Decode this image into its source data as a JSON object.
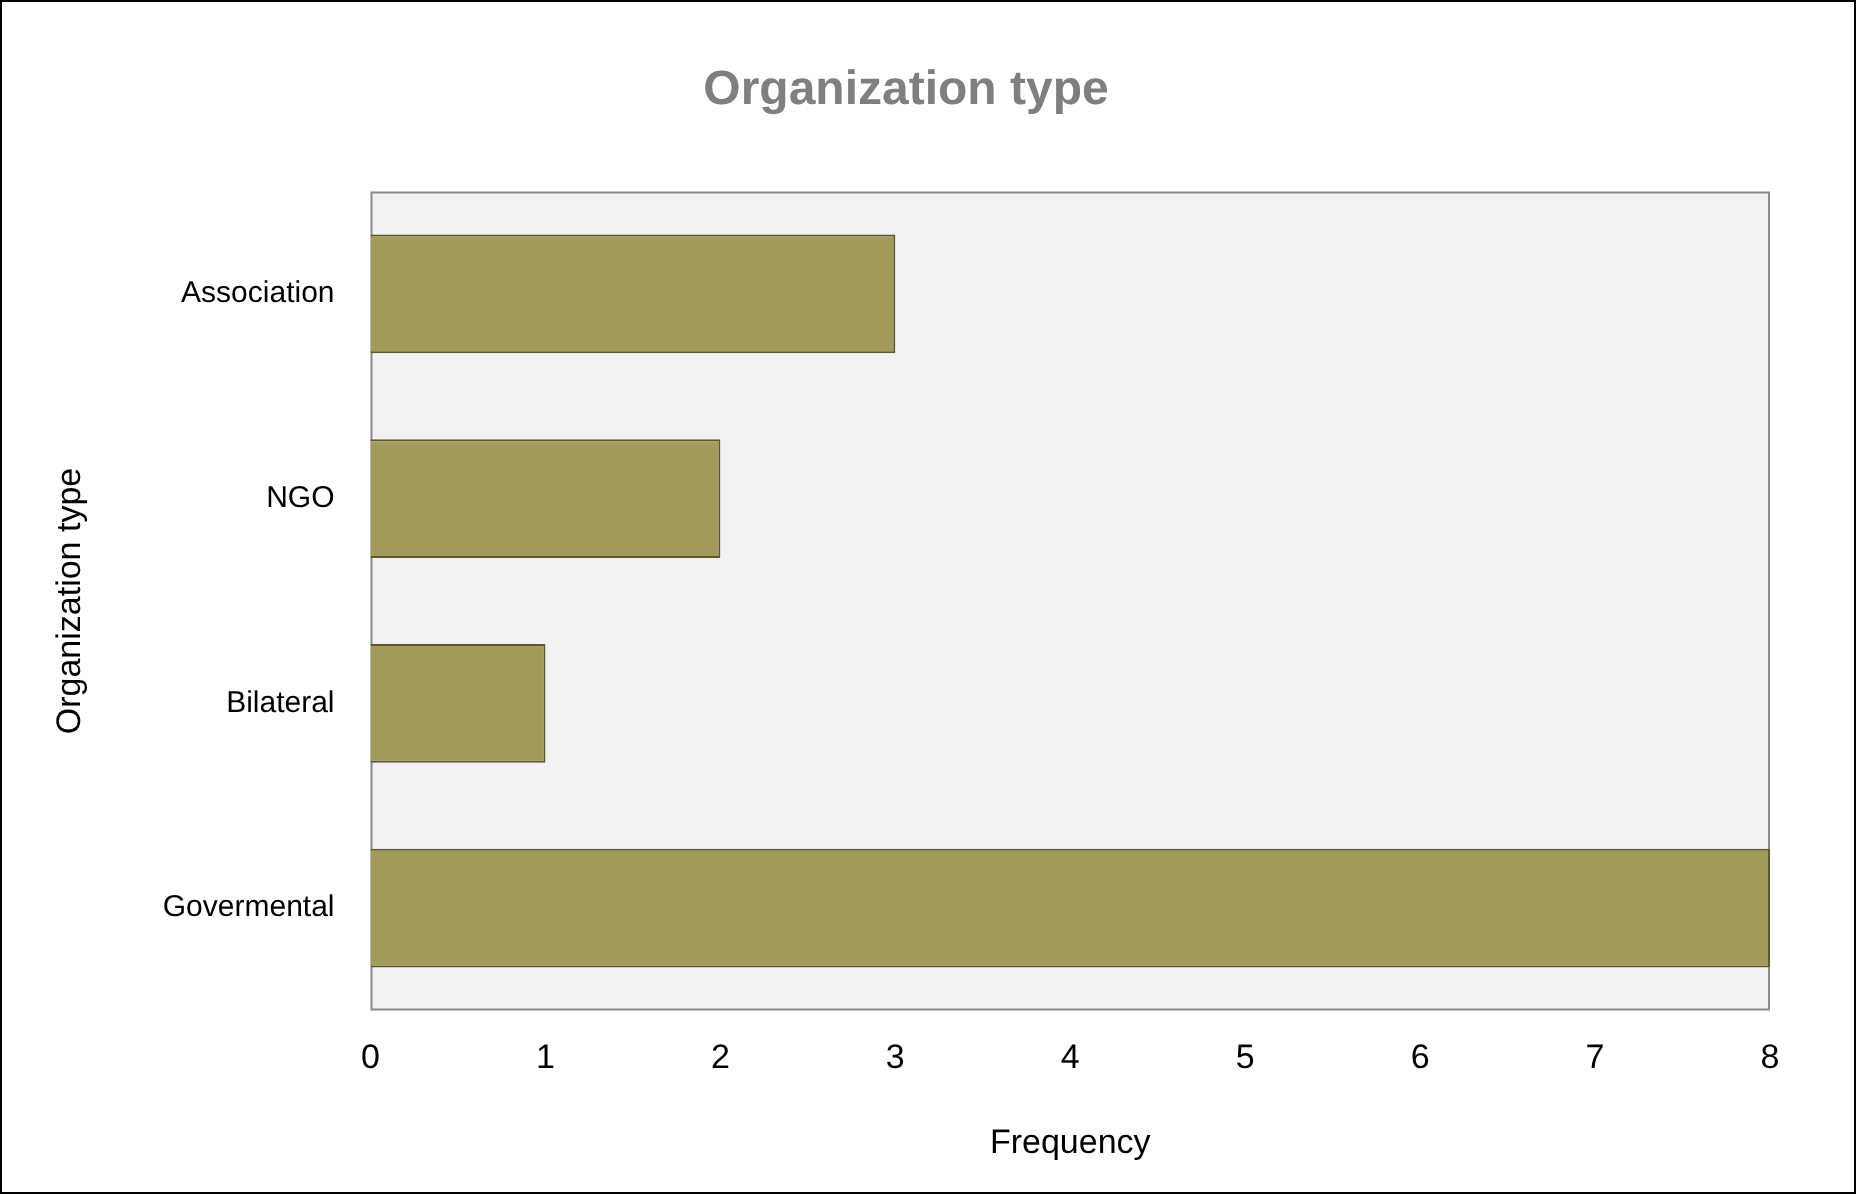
{
  "chart_data": {
    "type": "bar",
    "orientation": "horizontal",
    "title": "Organization type",
    "xlabel": "Frequency",
    "ylabel": "Organization type",
    "categories": [
      "Association",
      "NGO",
      "Bilateral",
      "Govermental"
    ],
    "values": [
      3,
      2,
      1,
      8
    ],
    "color": "#a39b5b",
    "xlim": [
      0,
      8
    ],
    "xticks": [
      0,
      1,
      2,
      3,
      4,
      5,
      6,
      7,
      8
    ],
    "grid": false,
    "legend": false
  }
}
